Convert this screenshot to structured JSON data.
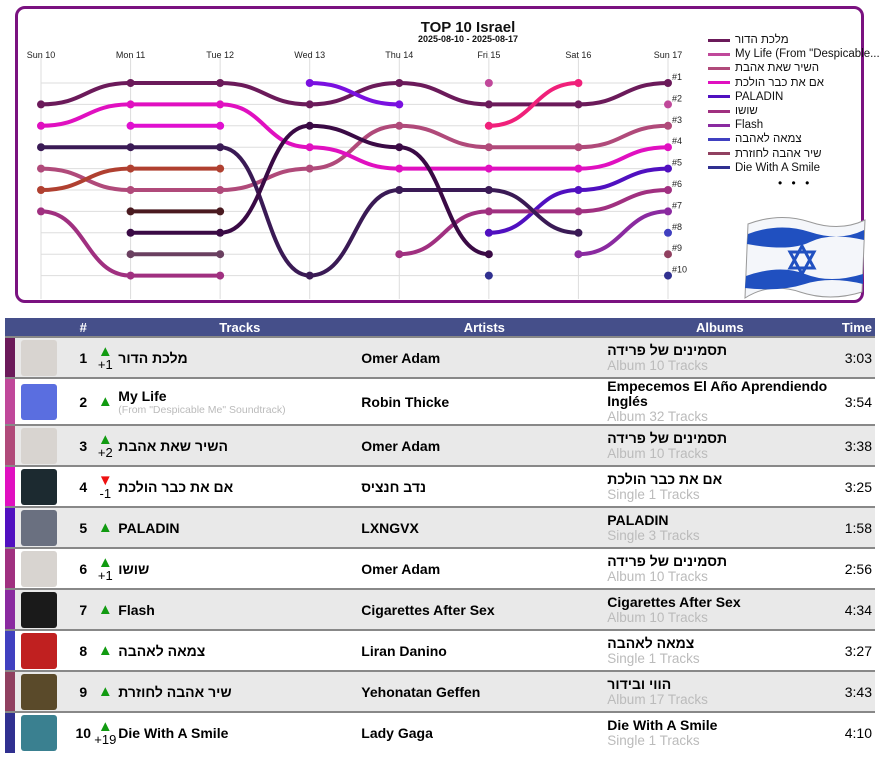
{
  "chart_data": {
    "type": "line",
    "title": "TOP 10 Israel",
    "subtitle": "2025-08-10 - 2025-08-17",
    "x": [
      "Sun 10",
      "Mon 11",
      "Tue 12",
      "Wed 13",
      "Thu 14",
      "Fri 15",
      "Sat 16",
      "Sun 17"
    ],
    "rank_labels": [
      "#1",
      "#2",
      "#3",
      "#4",
      "#5",
      "#6",
      "#7",
      "#8",
      "#9",
      "#10"
    ],
    "ylim": [
      1,
      10
    ],
    "series": [
      {
        "name": "מלכת הדור",
        "color": "#6b1a5a",
        "values": [
          2,
          1,
          1,
          2,
          1,
          2,
          2,
          1
        ]
      },
      {
        "name": "My Life (From \"Despicable...",
        "color": "#c0489a",
        "values": [
          null,
          null,
          null,
          null,
          null,
          1,
          null,
          2
        ]
      },
      {
        "name": "השיר שאת אהבת",
        "color": "#b04a7a",
        "values": [
          5,
          6,
          6,
          5,
          3,
          4,
          4,
          3
        ]
      },
      {
        "name": "אם את כבר הולכת",
        "color": "#e010c0",
        "values": [
          3,
          2,
          2,
          4,
          5,
          5,
          5,
          4
        ]
      },
      {
        "name": "PALADIN",
        "color": "#5010c0",
        "values": [
          null,
          null,
          null,
          null,
          null,
          8,
          6,
          5
        ]
      },
      {
        "name": "שושו",
        "color": "#a03080",
        "values": [
          7,
          10,
          10,
          null,
          9,
          7,
          7,
          6
        ]
      },
      {
        "name": "Flash",
        "color": "#8a2aa0",
        "values": [
          null,
          null,
          null,
          null,
          null,
          null,
          9,
          7
        ]
      },
      {
        "name": "צמאה לאהבה",
        "color": "#4040c0",
        "values": [
          null,
          null,
          null,
          null,
          null,
          null,
          null,
          8
        ]
      },
      {
        "name": "שיר אהבה לחוזרת",
        "color": "#904060",
        "values": [
          null,
          null,
          null,
          null,
          null,
          null,
          null,
          9
        ]
      },
      {
        "name": "Die With A Smile",
        "color": "#303090",
        "values": [
          null,
          null,
          null,
          null,
          null,
          10,
          null,
          10
        ]
      },
      {
        "name": "",
        "color": "#3a1a55",
        "values": [
          4,
          4,
          4,
          10,
          6,
          6,
          8,
          null
        ]
      },
      {
        "name": "",
        "color": "#3a0a45",
        "values": [
          null,
          8,
          8,
          3,
          4,
          9,
          null,
          null
        ]
      },
      {
        "name": "",
        "color": "#b04030",
        "values": [
          6,
          5,
          5,
          null,
          null,
          null,
          null,
          null
        ]
      },
      {
        "name": "",
        "color": "#7a10e0",
        "values": [
          null,
          null,
          null,
          1,
          2,
          null,
          null,
          null
        ]
      },
      {
        "name": "",
        "color": "#f0207a",
        "values": [
          null,
          null,
          null,
          null,
          null,
          3,
          1,
          null
        ]
      },
      {
        "name": "",
        "color": "#e010d0",
        "values": [
          null,
          3,
          3,
          null,
          null,
          null,
          null,
          null
        ]
      },
      {
        "name": "",
        "color": "#4a1a20",
        "values": [
          null,
          7,
          7,
          null,
          null,
          null,
          null,
          null
        ]
      },
      {
        "name": "",
        "color": "#6a4060",
        "values": [
          null,
          9,
          9,
          null,
          null,
          null,
          null,
          null
        ]
      }
    ],
    "legend_more": "• • •",
    "legend_position": "right"
  },
  "table": {
    "headers": {
      "num": "#",
      "tracks": "Tracks",
      "artists": "Artists",
      "albums": "Albums",
      "time": "Time"
    },
    "rows": [
      {
        "rank": "1",
        "dir": "up",
        "change": "+1",
        "track": "מלכת הדור",
        "sub": "",
        "artist": "Omer Adam",
        "album": "תסמינים של פרידה",
        "album_info": "Album 10 Tracks",
        "time": "3:03",
        "color": "#6b1a5a",
        "thumb": "#d8d4d0"
      },
      {
        "rank": "2",
        "dir": "up",
        "change": "",
        "track": "My Life",
        "sub": "(From \"Despicable Me\" Soundtrack)",
        "artist": "Robin Thicke",
        "album": "Empecemos El Año Aprendiendo Inglés",
        "album_info": "Album 32 Tracks",
        "time": "3:54",
        "color": "#c0489a",
        "thumb": "#5a6ee0"
      },
      {
        "rank": "3",
        "dir": "up",
        "change": "+2",
        "track": "השיר שאת אהבת",
        "sub": "",
        "artist": "Omer Adam",
        "album": "תסמינים של פרידה",
        "album_info": "Album 10 Tracks",
        "time": "3:38",
        "color": "#b04a7a",
        "thumb": "#d8d4d0"
      },
      {
        "rank": "4",
        "dir": "down",
        "change": "-1",
        "track": "אם את כבר הולכת",
        "sub": "",
        "artist": "נדב חנציס",
        "album": "אם את כבר הולכת",
        "album_info": "Single 1 Tracks",
        "time": "3:25",
        "color": "#e010c0",
        "thumb": "#1c2a30"
      },
      {
        "rank": "5",
        "dir": "up",
        "change": "",
        "track": "PALADIN",
        "sub": "",
        "artist": "LXNGVX",
        "album": "PALADIN",
        "album_info": "Single 3 Tracks",
        "time": "1:58",
        "color": "#5010c0",
        "thumb": "#6a7080"
      },
      {
        "rank": "6",
        "dir": "up",
        "change": "+1",
        "track": "שושו",
        "sub": "",
        "artist": "Omer Adam",
        "album": "תסמינים של פרידה",
        "album_info": "Album 10 Tracks",
        "time": "2:56",
        "color": "#a03080",
        "thumb": "#d8d4d0"
      },
      {
        "rank": "7",
        "dir": "up",
        "change": "",
        "track": "Flash",
        "sub": "",
        "artist": "Cigarettes After Sex",
        "album": "Cigarettes After Sex",
        "album_info": "Album 10 Tracks",
        "time": "4:34",
        "color": "#8a2aa0",
        "thumb": "#1a1a1a"
      },
      {
        "rank": "8",
        "dir": "up",
        "change": "",
        "track": "צמאה לאהבה",
        "sub": "",
        "artist": "Liran Danino",
        "album": "צמאה לאהבה",
        "album_info": "Single 1 Tracks",
        "time": "3:27",
        "color": "#4040c0",
        "thumb": "#c02020"
      },
      {
        "rank": "9",
        "dir": "up",
        "change": "",
        "track": "שיר אהבה לחוזרת",
        "sub": "",
        "artist": "Yehonatan Geffen",
        "album": "הווי ובידור",
        "album_info": "Album 17 Tracks",
        "time": "3:43",
        "color": "#904060",
        "thumb": "#5a4a2a"
      },
      {
        "rank": "10",
        "dir": "up",
        "change": "+19",
        "track": "Die With A Smile",
        "sub": "",
        "artist": "Lady Gaga",
        "album": "Die With A Smile",
        "album_info": "Single 1 Tracks",
        "time": "4:10",
        "color": "#303090",
        "thumb": "#3a8090"
      }
    ]
  }
}
